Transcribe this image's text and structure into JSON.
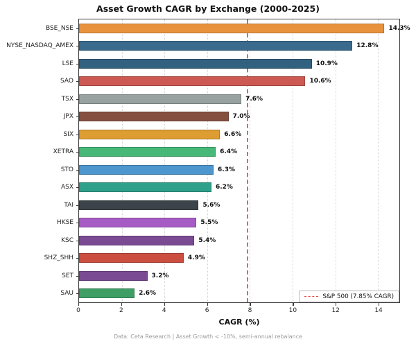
{
  "figure": {
    "title": "Asset Growth CAGR by Exchange (2000-2025)",
    "footer": "Data: Ceta Research | Asset Growth < -10%, semi-annual rebalance"
  },
  "chart_data": {
    "type": "bar",
    "orientation": "horizontal",
    "title": "Asset Growth CAGR by Exchange (2000-2025)",
    "xlabel": "CAGR (%)",
    "ylabel": "",
    "xlim": [
      0,
      15
    ],
    "xticks": [
      0,
      2,
      4,
      6,
      8,
      10,
      12,
      14
    ],
    "grid": "vertical-dotted",
    "categories": [
      "BSE_NSE",
      "NYSE_NASDAQ_AMEX",
      "LSE",
      "SAO",
      "TSX",
      "JPX",
      "SIX",
      "XETRA",
      "STO",
      "ASX",
      "TAI",
      "HKSE",
      "KSC",
      "SHZ_SHH",
      "SET",
      "SAU"
    ],
    "values": [
      14.3,
      12.8,
      10.9,
      10.6,
      7.6,
      7.0,
      6.6,
      6.4,
      6.3,
      6.2,
      5.6,
      5.5,
      5.4,
      4.9,
      3.2,
      2.6
    ],
    "value_labels": [
      "14.3%",
      "12.8%",
      "10.9%",
      "10.6%",
      "7.6%",
      "7.0%",
      "6.6%",
      "6.4%",
      "6.3%",
      "6.2%",
      "5.6%",
      "5.5%",
      "5.4%",
      "4.9%",
      "3.2%",
      "2.6%"
    ],
    "bar_colors": [
      "#e8923e",
      "#3a6b8d",
      "#32617f",
      "#cd5a52",
      "#97a2a1",
      "#855040",
      "#dd9d33",
      "#47b878",
      "#4d96ce",
      "#2fa08a",
      "#3c434a",
      "#a75bc4",
      "#7a4a92",
      "#cb4e41",
      "#7a4a92",
      "#3f9e64"
    ],
    "reference_line": {
      "value": 7.85,
      "label": "S&P 500 (7.85% CAGR)",
      "color": "#e8453c",
      "style": "dashed"
    },
    "legend": {
      "position": "lower right",
      "entries": [
        "S&P 500 (7.85% CAGR)"
      ]
    }
  }
}
